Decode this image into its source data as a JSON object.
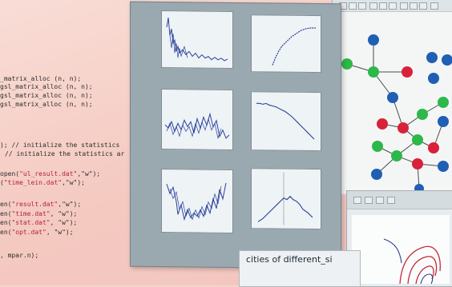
{
  "code_editor": {
    "lines": [
      {
        "text": "_matrix_alloc (n, n);"
      },
      {
        "text": "gsl_matrix_alloc (n, n);"
      },
      {
        "text": "gsl_matrix_alloc (n, n);"
      },
      {
        "text": "gsl_matrix_alloc (n, n);"
      },
      {
        "text": "); // initialize the statistics"
      },
      {
        "text": "// initialize the statistics ar"
      },
      {
        "prefix": "open(",
        "str": "\"ul_result.dat\"",
        "suffix": ",\"w\");"
      },
      {
        "prefix": "(",
        "str": "\"time_lein.dat\"",
        "suffix": ",\"w\");"
      },
      {
        "prefix": "en(",
        "str": "\"result.dat\"",
        "suffix": ",\"w\");"
      },
      {
        "prefix": "en(",
        "str": "\"time.dat\"",
        "suffix": ", \"w\");"
      },
      {
        "prefix": "en(",
        "str": "\"stat.dat\"",
        "suffix": ", \"w\");"
      },
      {
        "prefix": "en(",
        "str": "\"opt.dat\"",
        "suffix": ", \"w\");"
      },
      {
        "text": ", mpar.n);"
      }
    ]
  },
  "caption": {
    "text": "cities of different_si"
  },
  "colors": {
    "node_blue": "#1f5fb4",
    "node_green": "#2db84a",
    "node_red": "#d8223a",
    "plot_line": "#2a3f9a",
    "code_string": "#b3223a"
  }
}
